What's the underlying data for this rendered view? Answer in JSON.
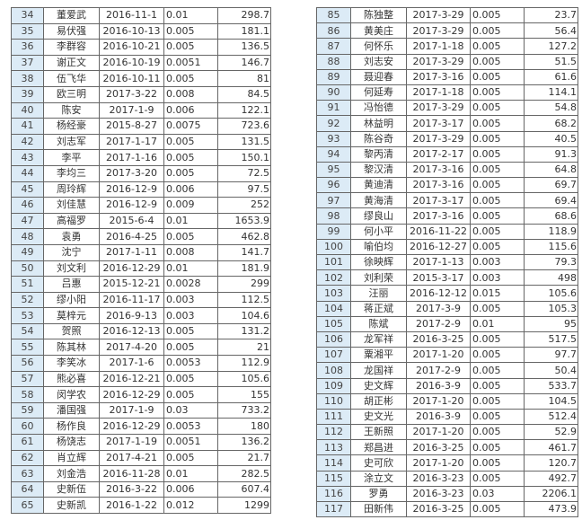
{
  "left_table": {
    "rows": [
      [
        "34",
        "董爱武",
        "2016-11-1",
        "0.01",
        "298.7"
      ],
      [
        "35",
        "易伏强",
        "2016-10-13",
        "0.005",
        "181.1"
      ],
      [
        "36",
        "李群容",
        "2016-10-21",
        "0.005",
        "136.5"
      ],
      [
        "37",
        "谢正文",
        "2016-10-19",
        "0.0051",
        "146.7"
      ],
      [
        "38",
        "伍飞华",
        "2016-10-11",
        "0.005",
        "81"
      ],
      [
        "39",
        "欧三明",
        "2017-3-22",
        "0.008",
        "84.5"
      ],
      [
        "40",
        "陈安",
        "2017-1-9",
        "0.006",
        "122.1"
      ],
      [
        "41",
        "杨经豪",
        "2015-8-27",
        "0.0075",
        "723.6"
      ],
      [
        "42",
        "刘志军",
        "2017-1-17",
        "0.005",
        "131.5"
      ],
      [
        "43",
        "李平",
        "2017-1-16",
        "0.005",
        "150.1"
      ],
      [
        "44",
        "李均三",
        "2017-3-20",
        "0.005",
        "72.5"
      ],
      [
        "45",
        "周玲辉",
        "2016-12-9",
        "0.006",
        "97.5"
      ],
      [
        "46",
        "刘佳慧",
        "2016-12-9",
        "0.009",
        "252"
      ],
      [
        "47",
        "高福罗",
        "2015-6-4",
        "0.01",
        "1653.9"
      ],
      [
        "48",
        "袁勇",
        "2016-4-25",
        "0.005",
        "462.8"
      ],
      [
        "49",
        "沈宁",
        "2017-1-11",
        "0.008",
        "141.7"
      ],
      [
        "50",
        "刘文利",
        "2016-12-29",
        "0.01",
        "181.9"
      ],
      [
        "51",
        "吕惠",
        "2015-12-21",
        "0.0028",
        "299"
      ],
      [
        "52",
        "缪小阳",
        "2016-11-17",
        "0.003",
        "112.5"
      ],
      [
        "53",
        "莫梓元",
        "2016-9-13",
        "0.003",
        "104.6"
      ],
      [
        "54",
        "贺照",
        "2016-12-13",
        "0.005",
        "131.2"
      ],
      [
        "55",
        "陈其林",
        "2017-4-20",
        "0.005",
        "21"
      ],
      [
        "56",
        "李笑冰",
        "2017-1-6",
        "0.0053",
        "112.9"
      ],
      [
        "57",
        "熊必喜",
        "2016-12-21",
        "0.005",
        "105.6"
      ],
      [
        "58",
        "闵学农",
        "2016-12-29",
        "0.005",
        "155"
      ],
      [
        "59",
        "潘国强",
        "2017-1-9",
        "0.03",
        "733.2"
      ],
      [
        "60",
        "杨作良",
        "2016-12-29",
        "0.0053",
        "180"
      ],
      [
        "61",
        "杨饶志",
        "2017-1-19",
        "0.0051",
        "136.2"
      ],
      [
        "62",
        "肖立辉",
        "2017-4-21",
        "0.005",
        "21.7"
      ],
      [
        "63",
        "刘金浩",
        "2016-11-28",
        "0.01",
        "282.5"
      ],
      [
        "64",
        "史新伍",
        "2016-3-22",
        "0.006",
        "607.4"
      ],
      [
        "65",
        "史新凯",
        "2016-1-22",
        "0.012",
        "1299"
      ]
    ]
  },
  "right_table": {
    "rows": [
      [
        "85",
        "陈独整",
        "2017-3-29",
        "0.005",
        "23.7"
      ],
      [
        "86",
        "黄美庄",
        "2017-3-29",
        "0.005",
        "56.4"
      ],
      [
        "87",
        "何怀乐",
        "2017-1-18",
        "0.005",
        "127.2"
      ],
      [
        "88",
        "刘志安",
        "2017-3-29",
        "0.005",
        "51.5"
      ],
      [
        "89",
        "聂迎春",
        "2017-3-16",
        "0.005",
        "61.6"
      ],
      [
        "90",
        "何延寿",
        "2017-1-18",
        "0.005",
        "114.1"
      ],
      [
        "91",
        "冯怡德",
        "2017-3-29",
        "0.005",
        "54.8"
      ],
      [
        "92",
        "林益明",
        "2017-3-17",
        "0.005",
        "68.2"
      ],
      [
        "93",
        "陈谷奇",
        "2017-3-29",
        "0.005",
        "40.5"
      ],
      [
        "94",
        "黎丙清",
        "2017-2-17",
        "0.005",
        "91.3"
      ],
      [
        "95",
        "黎汉清",
        "2017-3-16",
        "0.005",
        "64.8"
      ],
      [
        "96",
        "黄迪清",
        "2017-3-16",
        "0.005",
        "69.7"
      ],
      [
        "97",
        "黄海清",
        "2017-3-17",
        "0.005",
        "69.4"
      ],
      [
        "98",
        "缪良山",
        "2017-3-16",
        "0.005",
        "68.6"
      ],
      [
        "99",
        "何小平",
        "2016-11-22",
        "0.005",
        "118.9"
      ],
      [
        "100",
        "喻伯均",
        "2016-12-27",
        "0.005",
        "115.6"
      ],
      [
        "101",
        "徐映辉",
        "2017-1-13",
        "0.003",
        "79.3"
      ],
      [
        "102",
        "刘利荣",
        "2015-3-17",
        "0.003",
        "498"
      ],
      [
        "103",
        "汪丽",
        "2016-12-12",
        "0.015",
        "105.6"
      ],
      [
        "104",
        "蒋正斌",
        "2017-3-9",
        "0.005",
        "105.3"
      ],
      [
        "105",
        "陈斌",
        "2017-2-9",
        "0.01",
        "95"
      ],
      [
        "106",
        "龙军祥",
        "2016-3-25",
        "0.005",
        "517.5"
      ],
      [
        "107",
        "粟湘平",
        "2017-1-20",
        "0.005",
        "97.7"
      ],
      [
        "108",
        "龙国祥",
        "2017-2-9",
        "0.005",
        "50.4"
      ],
      [
        "109",
        "史文辉",
        "2016-3-9",
        "0.005",
        "533.7"
      ],
      [
        "110",
        "胡正彬",
        "2017-1-20",
        "0.005",
        "104.5"
      ],
      [
        "111",
        "史文光",
        "2016-3-9",
        "0.005",
        "512.4"
      ],
      [
        "112",
        "王新照",
        "2017-1-20",
        "0.005",
        "52.9"
      ],
      [
        "113",
        "郑昌进",
        "2016-3-25",
        "0.005",
        "461.7"
      ],
      [
        "114",
        "史可欣",
        "2017-1-20",
        "0.005",
        "120.7"
      ],
      [
        "115",
        "涂立文",
        "2016-3-23",
        "0.005",
        "492.7"
      ],
      [
        "116",
        "罗勇",
        "2016-3-23",
        "0.03",
        "2206.1"
      ],
      [
        "117",
        "田新伟",
        "2016-3-25",
        "0.005",
        "473.9"
      ]
    ]
  }
}
